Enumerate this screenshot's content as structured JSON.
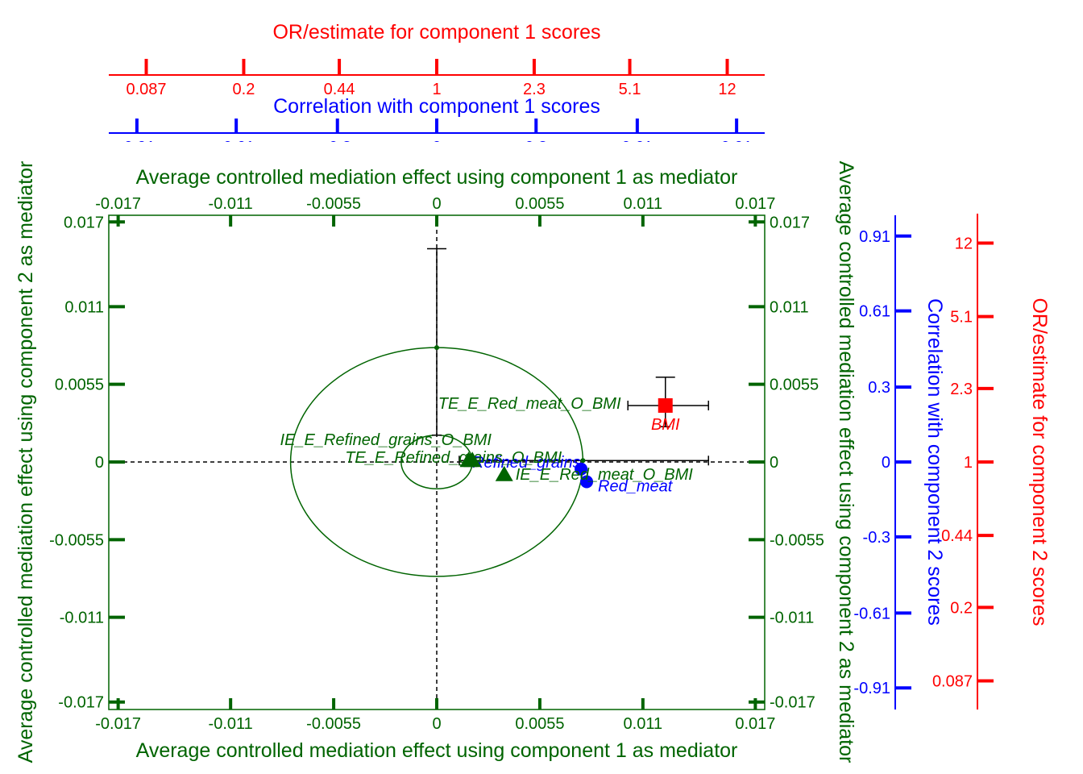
{
  "colors": {
    "green": "#006400",
    "blue": "#0000ff",
    "red": "#ff0000",
    "black": "#000000"
  },
  "titles": {
    "top_red": "OR/estimate for component 1 scores",
    "top_blue": "Correlation with component 1 scores",
    "top_green": "Average controlled mediation effect using component 1 as mediator",
    "bottom_green": "Average controlled mediation effect using component 1 as mediator",
    "left_green": "Average controlled mediation effect using component 2 as mediator",
    "right_green": "Average controlled mediation effect using component 2 as mediator",
    "right_blue": "Correlation with component 2 scores",
    "right_red": "OR/estimate for component 2 scores"
  },
  "chart_data": {
    "type": "scatter",
    "xlim": [
      -0.0175,
      0.0175
    ],
    "ylim": [
      -0.0175,
      0.0175
    ],
    "main_ticks": [
      {
        "v": -0.017,
        "label": "-0.017"
      },
      {
        "v": -0.011,
        "label": "-0.011"
      },
      {
        "v": -0.0055,
        "label": "-0.0055"
      },
      {
        "v": 0,
        "label": "0"
      },
      {
        "v": 0.0055,
        "label": "0.0055"
      },
      {
        "v": 0.011,
        "label": "0.011"
      },
      {
        "v": 0.017,
        "label": "0.017"
      }
    ],
    "corr_ticks": [
      {
        "v": -0.016,
        "label": "-0.91"
      },
      {
        "v": -0.0107,
        "label": "-0.61"
      },
      {
        "v": -0.0053,
        "label": "-0.3"
      },
      {
        "v": 0,
        "label": "0"
      },
      {
        "v": 0.0053,
        "label": "0.3"
      },
      {
        "v": 0.0107,
        "label": "0.61"
      },
      {
        "v": 0.016,
        "label": "0.91"
      }
    ],
    "or_ticks": [
      {
        "v": -0.0155,
        "label": "0.087"
      },
      {
        "v": -0.0103,
        "label": "0.2"
      },
      {
        "v": -0.0052,
        "label": "0.44"
      },
      {
        "v": 0,
        "label": "1"
      },
      {
        "v": 0.0052,
        "label": "2.3"
      },
      {
        "v": 0.0103,
        "label": "5.1"
      },
      {
        "v": 0.0155,
        "label": "12"
      }
    ],
    "ellipses": [
      {
        "rx": 0.0078,
        "ry": 0.0081
      },
      {
        "rx": 0.0019,
        "ry": 0.0019
      }
    ],
    "error_bars": [
      {
        "x": 0,
        "y": 0.0081,
        "x_lo": 0,
        "x_hi": 0,
        "y_lo": 0.0019,
        "y_hi": 0.0151
      },
      {
        "x": 0.0122,
        "y": 0.004,
        "x_lo": 0.0102,
        "x_hi": 0.0145,
        "y_lo": 0.0025,
        "y_hi": 0.006
      },
      {
        "x": 0.0078,
        "y": 0.0001,
        "x_lo": 0.0012,
        "x_hi": 0.0145,
        "y_lo": 0.0001,
        "y_hi": 0.0001
      }
    ],
    "points": [
      {
        "name": "BMI",
        "x": 0.0122,
        "y": 0.004,
        "shape": "square",
        "color": "red",
        "label": "BMI",
        "dx": 0,
        "dy": 30,
        "anchor": "middle"
      },
      {
        "name": "Red_meat",
        "x": 0.008,
        "y": -0.0014,
        "shape": "circle",
        "color": "blue",
        "label": "Red_meat",
        "dx": 14,
        "dy": 12,
        "anchor": "start"
      },
      {
        "name": "Refined_grains",
        "x": 0.0077,
        "y": -0.0005,
        "shape": "circle",
        "color": "blue",
        "label": "Refined_grains",
        "dx": -135,
        "dy": -2,
        "anchor": "start"
      },
      {
        "name": "TE_E_Red_meat_O_BMI",
        "x": 0.0122,
        "y": 0.004,
        "shape": "none",
        "color": "green",
        "label": "TE_E_Red_meat_O_BMI",
        "dx": -282,
        "dy": 4,
        "anchor": "start"
      },
      {
        "name": "IE_E_Refined_grains_O_BMI",
        "x": 0.0017,
        "y": 0.0001,
        "shape": "triangle",
        "color": "green",
        "label": "IE_E_Refined_grains_O_BMI",
        "dx": -234,
        "dy": -19,
        "anchor": "start"
      },
      {
        "name": "TE_E_Refined_grains_O_BMI",
        "x": 0.0019,
        "y": 0.0001,
        "shape": "triangle",
        "color": "green",
        "label": "TE_E_Refined_grains_O_BMI",
        "dx": -158,
        "dy": 3,
        "anchor": "start"
      },
      {
        "name": "IE_E_Red_meat_O_BMI",
        "x": 0.0036,
        "y": -0.0009,
        "shape": "triangle",
        "color": "green",
        "label": "IE_E_Red_meat_O_BMI",
        "dx": 14,
        "dy": 6,
        "anchor": "start"
      }
    ]
  }
}
